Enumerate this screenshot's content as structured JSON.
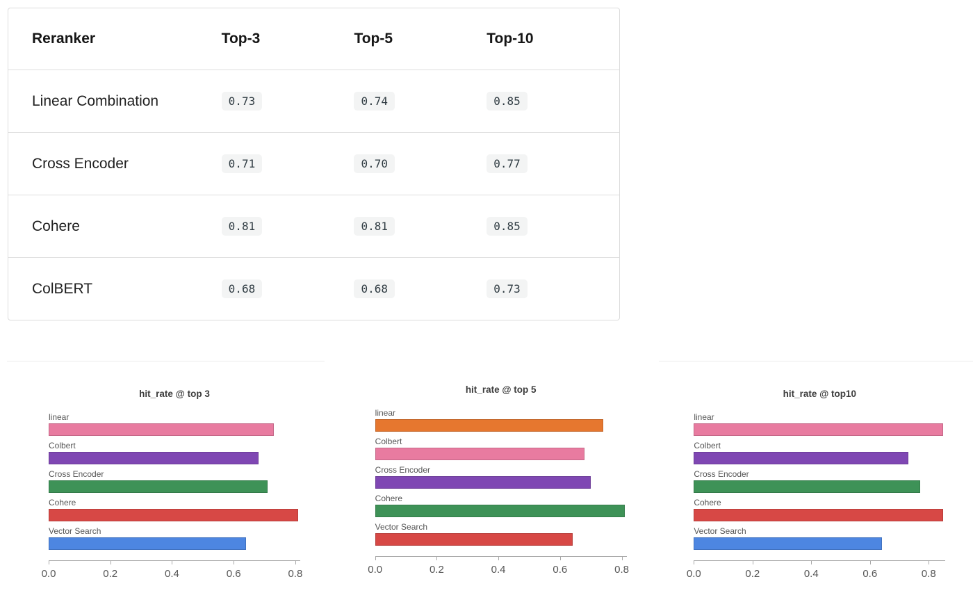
{
  "table": {
    "columns": [
      "Reranker",
      "Top-3",
      "Top-5",
      "Top-10"
    ],
    "rows": [
      {
        "label": "Linear Combination",
        "values": [
          "0.73",
          "0.74",
          "0.85"
        ]
      },
      {
        "label": "Cross Encoder",
        "values": [
          "0.71",
          "0.70",
          "0.77"
        ]
      },
      {
        "label": "Cohere",
        "values": [
          "0.81",
          "0.81",
          "0.85"
        ]
      },
      {
        "label": "ColBERT",
        "values": [
          "0.68",
          "0.68",
          "0.73"
        ]
      }
    ]
  },
  "chart_data": [
    {
      "type": "bar",
      "orientation": "horizontal",
      "title": "hit_rate @ top 3",
      "categories": [
        "linear",
        "Colbert",
        "Cross Encoder",
        "Cohere",
        "Vector Search"
      ],
      "values": [
        0.73,
        0.68,
        0.71,
        0.81,
        0.64
      ],
      "bar_colors": [
        "#e87ba0",
        "#7f47b3",
        "#3e9257",
        "#d74845",
        "#4d86e1"
      ],
      "x_ticks": [
        "0.0",
        "0.2",
        "0.4",
        "0.6",
        "0.8"
      ],
      "xlim": [
        0,
        0.816
      ],
      "xlabel": "",
      "ylabel": "",
      "grid": false,
      "legend": "none"
    },
    {
      "type": "bar",
      "orientation": "horizontal",
      "title": "hit_rate @ top 5",
      "categories": [
        "linear",
        "Colbert",
        "Cross Encoder",
        "Cohere",
        "Vector Search"
      ],
      "values": [
        0.74,
        0.68,
        0.7,
        0.81,
        0.64
      ],
      "bar_colors": [
        "#e6772f",
        "#e87ba0",
        "#7f47b3",
        "#3e9257",
        "#d74845"
      ],
      "x_ticks": [
        "0.0",
        "0.2",
        "0.4",
        "0.6",
        "0.8"
      ],
      "xlim": [
        0,
        0.816
      ],
      "xlabel": "",
      "ylabel": "",
      "grid": false,
      "legend": "none"
    },
    {
      "type": "bar",
      "orientation": "horizontal",
      "title": "hit_rate @ top10",
      "categories": [
        "linear",
        "Colbert",
        "Cross Encoder",
        "Cohere",
        "Vector Search"
      ],
      "values": [
        0.85,
        0.73,
        0.77,
        0.85,
        0.64
      ],
      "bar_colors": [
        "#e87ba0",
        "#7f47b3",
        "#3e9257",
        "#d74845",
        "#4d86e1"
      ],
      "x_ticks": [
        "0.0",
        "0.2",
        "0.4",
        "0.6",
        "0.8"
      ],
      "xlim": [
        0,
        0.857
      ],
      "xlabel": "",
      "ylabel": "",
      "grid": false,
      "legend": "none"
    }
  ]
}
